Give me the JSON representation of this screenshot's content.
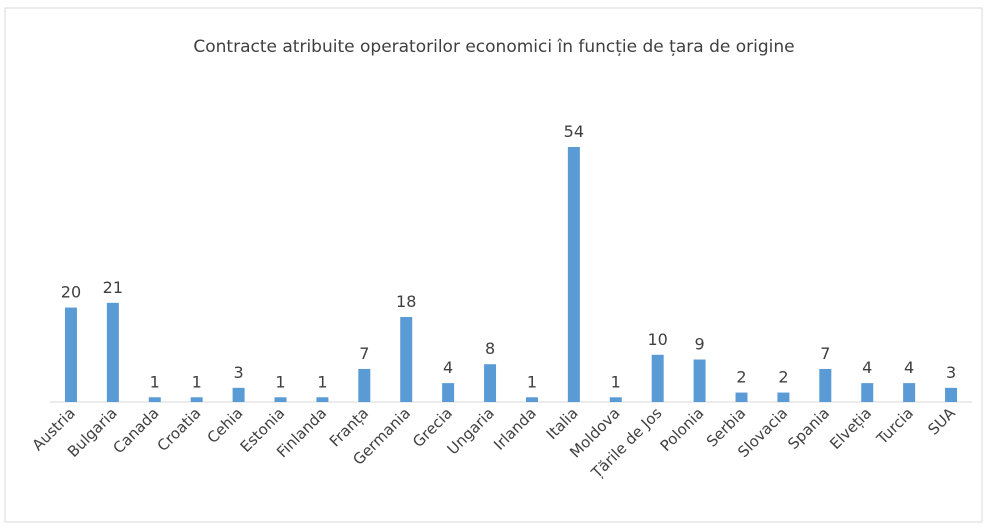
{
  "chart_data": {
    "type": "bar",
    "title": "Contracte atribuite operatorilor economici în funcție de țara de origine",
    "categories": [
      "Austria",
      "Bulgaria",
      "Canada",
      "Croatia",
      "Cehia",
      "Estonia",
      "Finlanda",
      "Franța",
      "Germania",
      "Grecia",
      "Ungaria",
      "Irlanda",
      "Italia",
      "Moldova",
      "Țările de Jos",
      "Polonia",
      "Serbia",
      "Slovacia",
      "Spania",
      "Elveția",
      "Turcia",
      "SUA"
    ],
    "values": [
      20,
      21,
      1,
      1,
      3,
      1,
      1,
      7,
      18,
      4,
      8,
      1,
      54,
      1,
      10,
      9,
      2,
      2,
      7,
      4,
      4,
      3
    ],
    "color": "#5b9bd5"
  }
}
